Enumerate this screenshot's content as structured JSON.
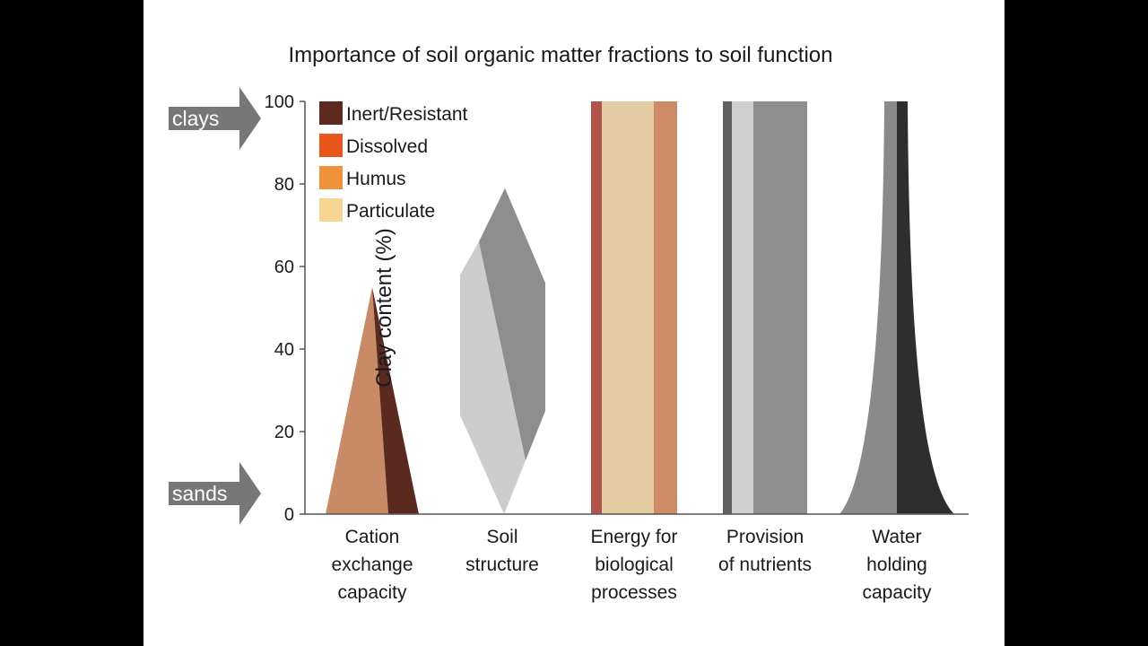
{
  "chart_data": {
    "type": "area",
    "title": "Importance of soil organic matter fractions to soil function",
    "ylabel": "Clay content (%)",
    "ylim": [
      0,
      100
    ],
    "yticks": [
      0,
      20,
      40,
      60,
      80,
      100
    ],
    "arrows": {
      "top": "clays",
      "bottom": "sands"
    },
    "legend": {
      "position": "top-left",
      "items": [
        {
          "label": "Inert/Resistant",
          "color": "#5e2a1e"
        },
        {
          "label": "Dissolved",
          "color": "#e8561c"
        },
        {
          "label": "Humus",
          "color": "#f0923a"
        },
        {
          "label": "Particulate",
          "color": "#f6d692"
        }
      ]
    },
    "categories": [
      {
        "label_lines": [
          "Cation",
          "exchange",
          "capacity"
        ],
        "shape": "pyramid",
        "ymin": 0,
        "ymax": 55,
        "layers": [
          {
            "role": "light",
            "color": "#c98b66"
          },
          {
            "role": "dark",
            "color": "#5a2a20"
          }
        ]
      },
      {
        "label_lines": [
          "Soil",
          "structure"
        ],
        "shape": "diamond",
        "ymin": 0,
        "ymax": 79,
        "layers": [
          {
            "role": "light",
            "color": "#cdcdcd"
          },
          {
            "role": "dark",
            "color": "#8e8e8e"
          }
        ]
      },
      {
        "label_lines": [
          "Energy for",
          "biological",
          "processes"
        ],
        "shape": "bars",
        "ymin": 0,
        "ymax": 100,
        "layers": [
          {
            "role": "dissolved",
            "color": "#b5524a"
          },
          {
            "role": "particulate",
            "color": "#e3cca3"
          },
          {
            "role": "humus",
            "color": "#cd8c66"
          }
        ]
      },
      {
        "label_lines": [
          "Provision",
          "of nutrients"
        ],
        "shape": "bars",
        "ymin": 0,
        "ymax": 100,
        "layers": [
          {
            "role": "inert",
            "color": "#5f5f5f"
          },
          {
            "role": "particulate",
            "color": "#cfcfcf"
          },
          {
            "role": "humus",
            "color": "#8e8e8e"
          }
        ]
      },
      {
        "label_lines": [
          "Water",
          "holding",
          "capacity"
        ],
        "shape": "flared",
        "ymin": 0,
        "ymax": 100,
        "layers": [
          {
            "role": "light",
            "color": "#8a8a8a"
          },
          {
            "role": "dark",
            "color": "#2e2e2e"
          }
        ]
      }
    ]
  }
}
